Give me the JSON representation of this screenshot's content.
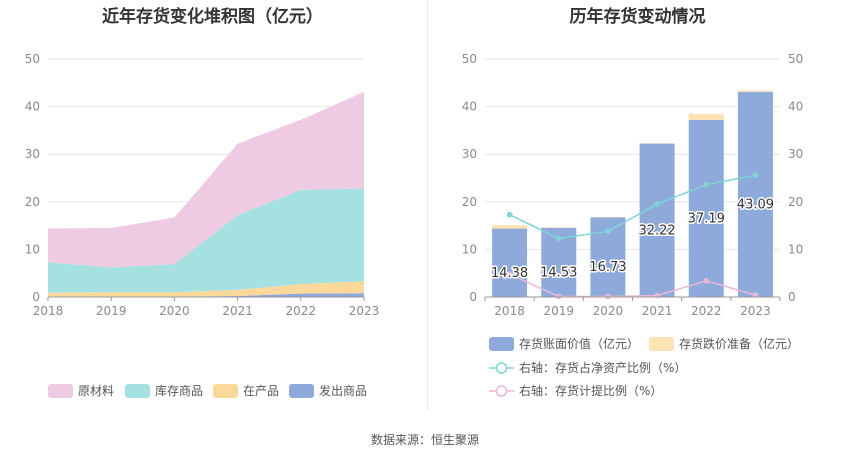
{
  "source_label": "数据来源：恒生聚源",
  "chart_data": [
    {
      "type": "area",
      "stacked": true,
      "title": "近年存货变化堆积图（亿元）",
      "categories": [
        "2018",
        "2019",
        "2020",
        "2021",
        "2022",
        "2023"
      ],
      "ylim": [
        0,
        50
      ],
      "yticks": [
        0,
        10,
        20,
        30,
        40,
        50
      ],
      "series": [
        {
          "name": "发出商品",
          "color": "#8eaadb",
          "values": [
            0.1,
            0.1,
            0.1,
            0.2,
            0.7,
            0.8
          ]
        },
        {
          "name": "在产品",
          "color": "#fcd99a",
          "values": [
            0.8,
            0.9,
            0.9,
            1.3,
            2.0,
            2.5
          ]
        },
        {
          "name": "库存商品",
          "color": "#a6e1e2",
          "values": [
            6.4,
            5.2,
            5.9,
            15.7,
            19.8,
            19.5
          ]
        },
        {
          "name": "原材料",
          "color": "#eecbe3",
          "values": [
            7.1,
            8.3,
            9.8,
            15.0,
            14.7,
            20.3
          ]
        }
      ],
      "legend_order": [
        "原材料",
        "库存商品",
        "在产品",
        "发出商品"
      ],
      "legend_position": "bottom"
    },
    {
      "type": "bar+line",
      "title": "历年存货变动情况",
      "categories": [
        "2018",
        "2019",
        "2020",
        "2021",
        "2022",
        "2023"
      ],
      "ylim_left": [
        0,
        50
      ],
      "ylim_right": [
        0,
        50
      ],
      "yticks": [
        0,
        10,
        20,
        30,
        40,
        50
      ],
      "bar_series": [
        {
          "name": "存货账面价值（亿元）",
          "color": "#8eaadb",
          "values": [
            14.38,
            14.53,
            16.73,
            32.22,
            37.19,
            43.09
          ],
          "labels": [
            "14.38",
            "14.53",
            "16.73",
            "32.22",
            "37.19",
            "43.09"
          ]
        },
        {
          "name": "存货跌价准备（亿元）",
          "color": "#fde3b4",
          "values": [
            0.7,
            0.1,
            0.1,
            0.1,
            1.3,
            0.3
          ]
        }
      ],
      "line_series": [
        {
          "name": "右轴：存货占净资产比例（%）",
          "color": "#7fd3d9",
          "values": [
            17.3,
            12.3,
            13.8,
            19.5,
            23.6,
            25.6
          ]
        },
        {
          "name": "右轴：存货计提比例（%）",
          "color": "#eab7d9",
          "values": [
            4.8,
            0.1,
            0.1,
            0.3,
            3.4,
            0.4
          ]
        }
      ],
      "legend_position": "bottom"
    }
  ]
}
